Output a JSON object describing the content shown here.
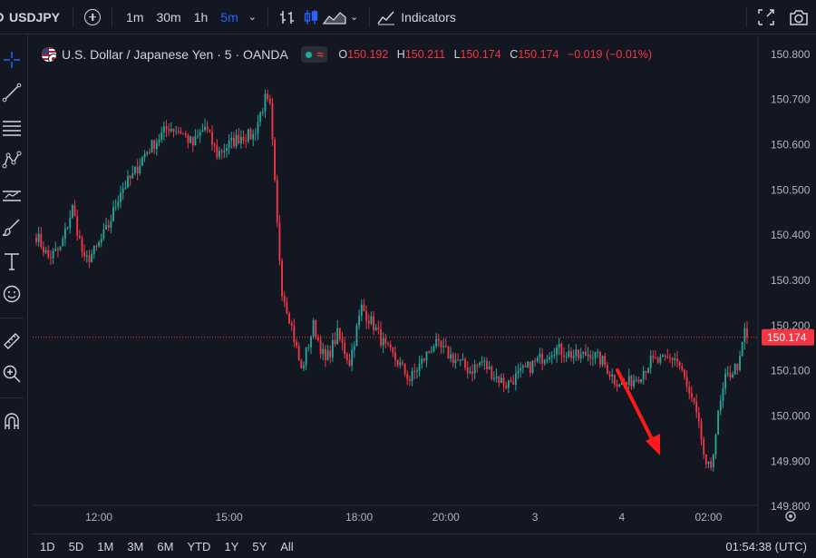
{
  "toolbar": {
    "symbol": "USDJPY",
    "intervals": [
      "1m",
      "30m",
      "1h",
      "5m"
    ],
    "active_interval": "5m",
    "indicators_label": "Indicators"
  },
  "legend": {
    "title": "U.S. Dollar / Japanese Yen · 5 · OANDA",
    "o_label": "O",
    "o": "150.192",
    "h_label": "H",
    "h": "150.211",
    "l_label": "L",
    "l": "150.174",
    "c_label": "C",
    "c": "150.174",
    "change": "−0.019 (−0.01%)"
  },
  "bottom": {
    "ranges": [
      "1D",
      "5D",
      "1M",
      "3M",
      "6M",
      "YTD",
      "1Y",
      "5Y",
      "All"
    ],
    "clock": "01:54:38 (UTC)"
  },
  "colors": {
    "background": "#131722",
    "up": "#26a69a",
    "down": "#f23645",
    "accent": "#2962ff",
    "annotation_arrow": "#ff1a1a"
  },
  "chart_data": {
    "type": "candlestick",
    "title": "U.S. Dollar / Japanese Yen · 5 · OANDA",
    "ylim": [
      149.76,
      150.84
    ],
    "y_ticks": [
      "150.800",
      "150.700",
      "150.600",
      "150.500",
      "150.400",
      "150.300",
      "150.200",
      "150.100",
      "150.000",
      "149.900",
      "149.800"
    ],
    "x_ticks": [
      "12:00",
      "15:00",
      "18:00",
      "20:00",
      "3",
      "4",
      "02:00"
    ],
    "last_price": "150.174",
    "annotation": "red-arrow-pointing-down-to-low",
    "anchors": [
      [
        0,
        150.4
      ],
      [
        5,
        150.35
      ],
      [
        10,
        150.37
      ],
      [
        15,
        150.46
      ],
      [
        20,
        150.34
      ],
      [
        25,
        150.37
      ],
      [
        30,
        150.42
      ],
      [
        35,
        150.5
      ],
      [
        40,
        150.53
      ],
      [
        45,
        150.58
      ],
      [
        50,
        150.61
      ],
      [
        55,
        150.64
      ],
      [
        60,
        150.63
      ],
      [
        65,
        150.6
      ],
      [
        70,
        150.64
      ],
      [
        75,
        150.58
      ],
      [
        80,
        150.6
      ],
      [
        85,
        150.62
      ],
      [
        90,
        150.62
      ],
      [
        95,
        150.7
      ],
      [
        97,
        150.68
      ],
      [
        98,
        150.6
      ],
      [
        100,
        150.42
      ],
      [
        102,
        150.28
      ],
      [
        105,
        150.22
      ],
      [
        110,
        150.1
      ],
      [
        115,
        150.2
      ],
      [
        120,
        150.12
      ],
      [
        125,
        150.18
      ],
      [
        130,
        150.12
      ],
      [
        135,
        150.24
      ],
      [
        140,
        150.2
      ],
      [
        145,
        150.15
      ],
      [
        150,
        150.12
      ],
      [
        155,
        150.08
      ],
      [
        160,
        150.12
      ],
      [
        165,
        150.16
      ],
      [
        170,
        150.14
      ],
      [
        175,
        150.12
      ],
      [
        180,
        150.1
      ],
      [
        185,
        150.12
      ],
      [
        190,
        150.09
      ],
      [
        195,
        150.07
      ],
      [
        200,
        150.09
      ],
      [
        205,
        150.11
      ],
      [
        210,
        150.13
      ],
      [
        215,
        150.15
      ],
      [
        220,
        150.14
      ],
      [
        225,
        150.13
      ],
      [
        230,
        150.14
      ],
      [
        235,
        150.12
      ],
      [
        240,
        150.08
      ],
      [
        245,
        150.07
      ],
      [
        250,
        150.09
      ],
      [
        255,
        150.12
      ],
      [
        260,
        150.12
      ],
      [
        265,
        150.13
      ],
      [
        268,
        150.1
      ],
      [
        270,
        150.06
      ],
      [
        273,
        150.02
      ],
      [
        276,
        149.95
      ],
      [
        278,
        149.88
      ],
      [
        280,
        149.89
      ],
      [
        283,
        150.0
      ],
      [
        286,
        150.08
      ],
      [
        289,
        150.1
      ],
      [
        292,
        150.12
      ],
      [
        294,
        150.19
      ],
      [
        295,
        150.174
      ]
    ]
  }
}
